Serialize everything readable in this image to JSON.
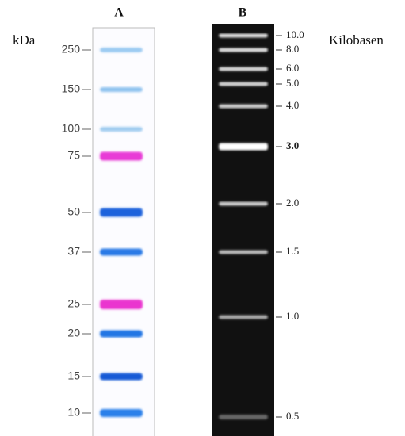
{
  "panels": [
    {
      "label": "A",
      "unit": "kDa",
      "bands": [
        "250",
        "150",
        "100",
        "75",
        "50",
        "37",
        "25",
        "20",
        "15",
        "10"
      ]
    },
    {
      "label": "B",
      "unit": "Kilobasen",
      "bands": [
        "10.0",
        "8.0",
        "6.0",
        "5.0",
        "4.0",
        "3.0",
        "2.0",
        "1.5",
        "1.0",
        "0.5"
      ]
    }
  ]
}
